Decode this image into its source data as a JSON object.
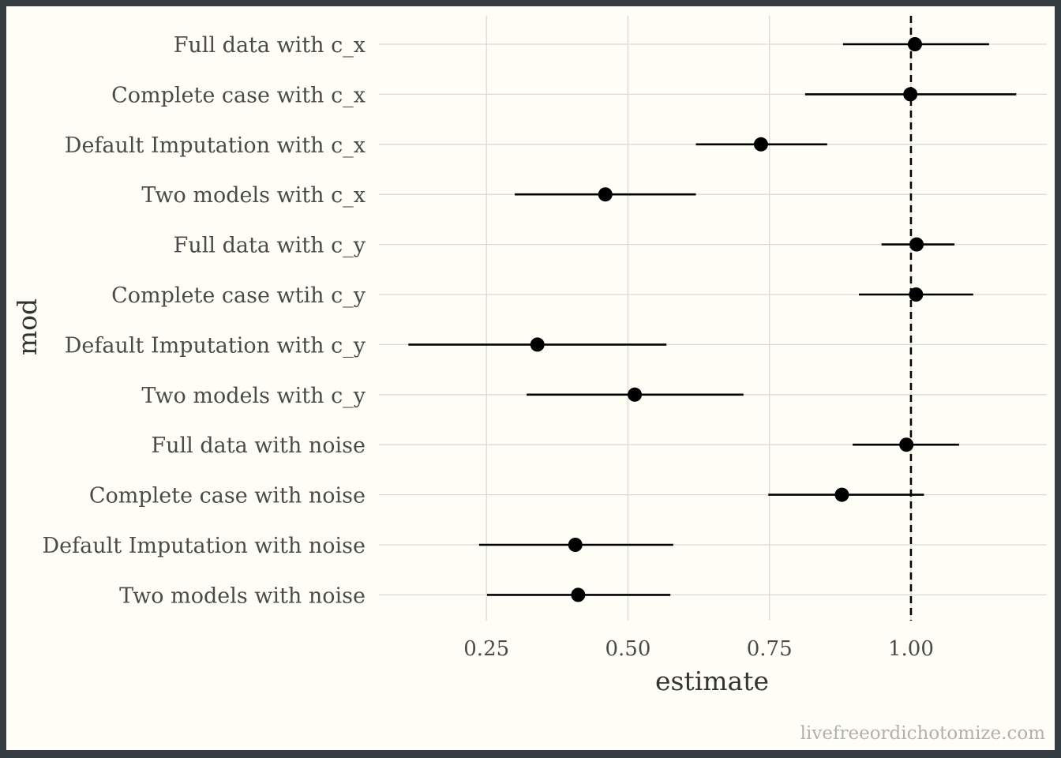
{
  "chart_data": {
    "type": "scatter",
    "subtype": "pointrange",
    "xlabel": "estimate",
    "ylabel": "mod",
    "xlim": [
      0.06,
      1.24
    ],
    "xticks": [
      "0.25",
      "0.50",
      "0.75",
      "1.00"
    ],
    "xtick_values": [
      0.25,
      0.5,
      0.75,
      1.0
    ],
    "reference_line": 1.0,
    "grid": true,
    "caption": "livefreeordichotomize.com",
    "categories": [
      "Full data with c_x",
      "Complete case with c_x",
      "Default Imputation with c_x",
      "Two models with c_x",
      "Full data with c_y",
      "Complete case wtih c_y",
      "Default Imputation with c_y",
      "Two models with c_y",
      "Full data with noise",
      "Complete case with noise",
      "Default Imputation with noise",
      "Two models with noise"
    ],
    "estimate": [
      1.007,
      0.999,
      0.735,
      0.46,
      1.01,
      1.009,
      0.34,
      0.512,
      0.992,
      0.878,
      0.407,
      0.412
    ],
    "lower": [
      0.88,
      0.813,
      0.62,
      0.3,
      0.948,
      0.908,
      0.112,
      0.321,
      0.897,
      0.748,
      0.237,
      0.251
    ],
    "upper": [
      1.138,
      1.186,
      0.852,
      0.62,
      1.077,
      1.11,
      0.568,
      0.704,
      1.085,
      1.023,
      0.58,
      0.575
    ]
  }
}
